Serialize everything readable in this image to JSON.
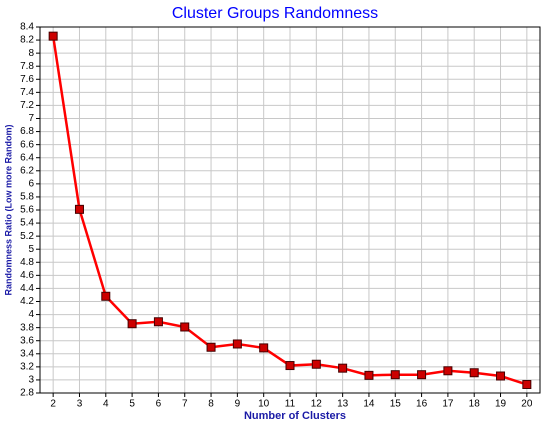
{
  "chart_data": {
    "type": "line",
    "title": "Cluster Groups Randomness",
    "x_label": "Number of Clusters",
    "y_label": "Randomness Ratio  (Low more Random)",
    "x": [
      2,
      3,
      4,
      5,
      6,
      7,
      8,
      9,
      10,
      11,
      12,
      13,
      14,
      15,
      16,
      17,
      18,
      19,
      20
    ],
    "series": [
      {
        "color": "#ff0000",
        "marker_color": "#cc0000",
        "values": [
          8.26,
          5.61,
          4.28,
          3.86,
          3.89,
          3.81,
          3.5,
          3.55,
          3.49,
          3.22,
          3.24,
          3.18,
          3.07,
          3.08,
          3.08,
          3.14,
          3.11,
          3.06,
          2.93
        ]
      }
    ],
    "xlim": [
      1.5,
      20.5
    ],
    "xticks": [
      2,
      3,
      4,
      5,
      6,
      7,
      8,
      9,
      10,
      11,
      12,
      13,
      14,
      15,
      16,
      17,
      18,
      19,
      20
    ],
    "ylim": [
      2.8,
      8.4
    ],
    "yticks": [
      2.8,
      3,
      3.2,
      3.4,
      3.6,
      3.8,
      4,
      4.2,
      4.4,
      4.6,
      4.8,
      5,
      5.2,
      5.4,
      5.6,
      5.8,
      6,
      6.2,
      6.4,
      6.6,
      6.8,
      7,
      7.2,
      7.4,
      7.6,
      7.8,
      8,
      8.2,
      8.4
    ],
    "grid": true
  }
}
